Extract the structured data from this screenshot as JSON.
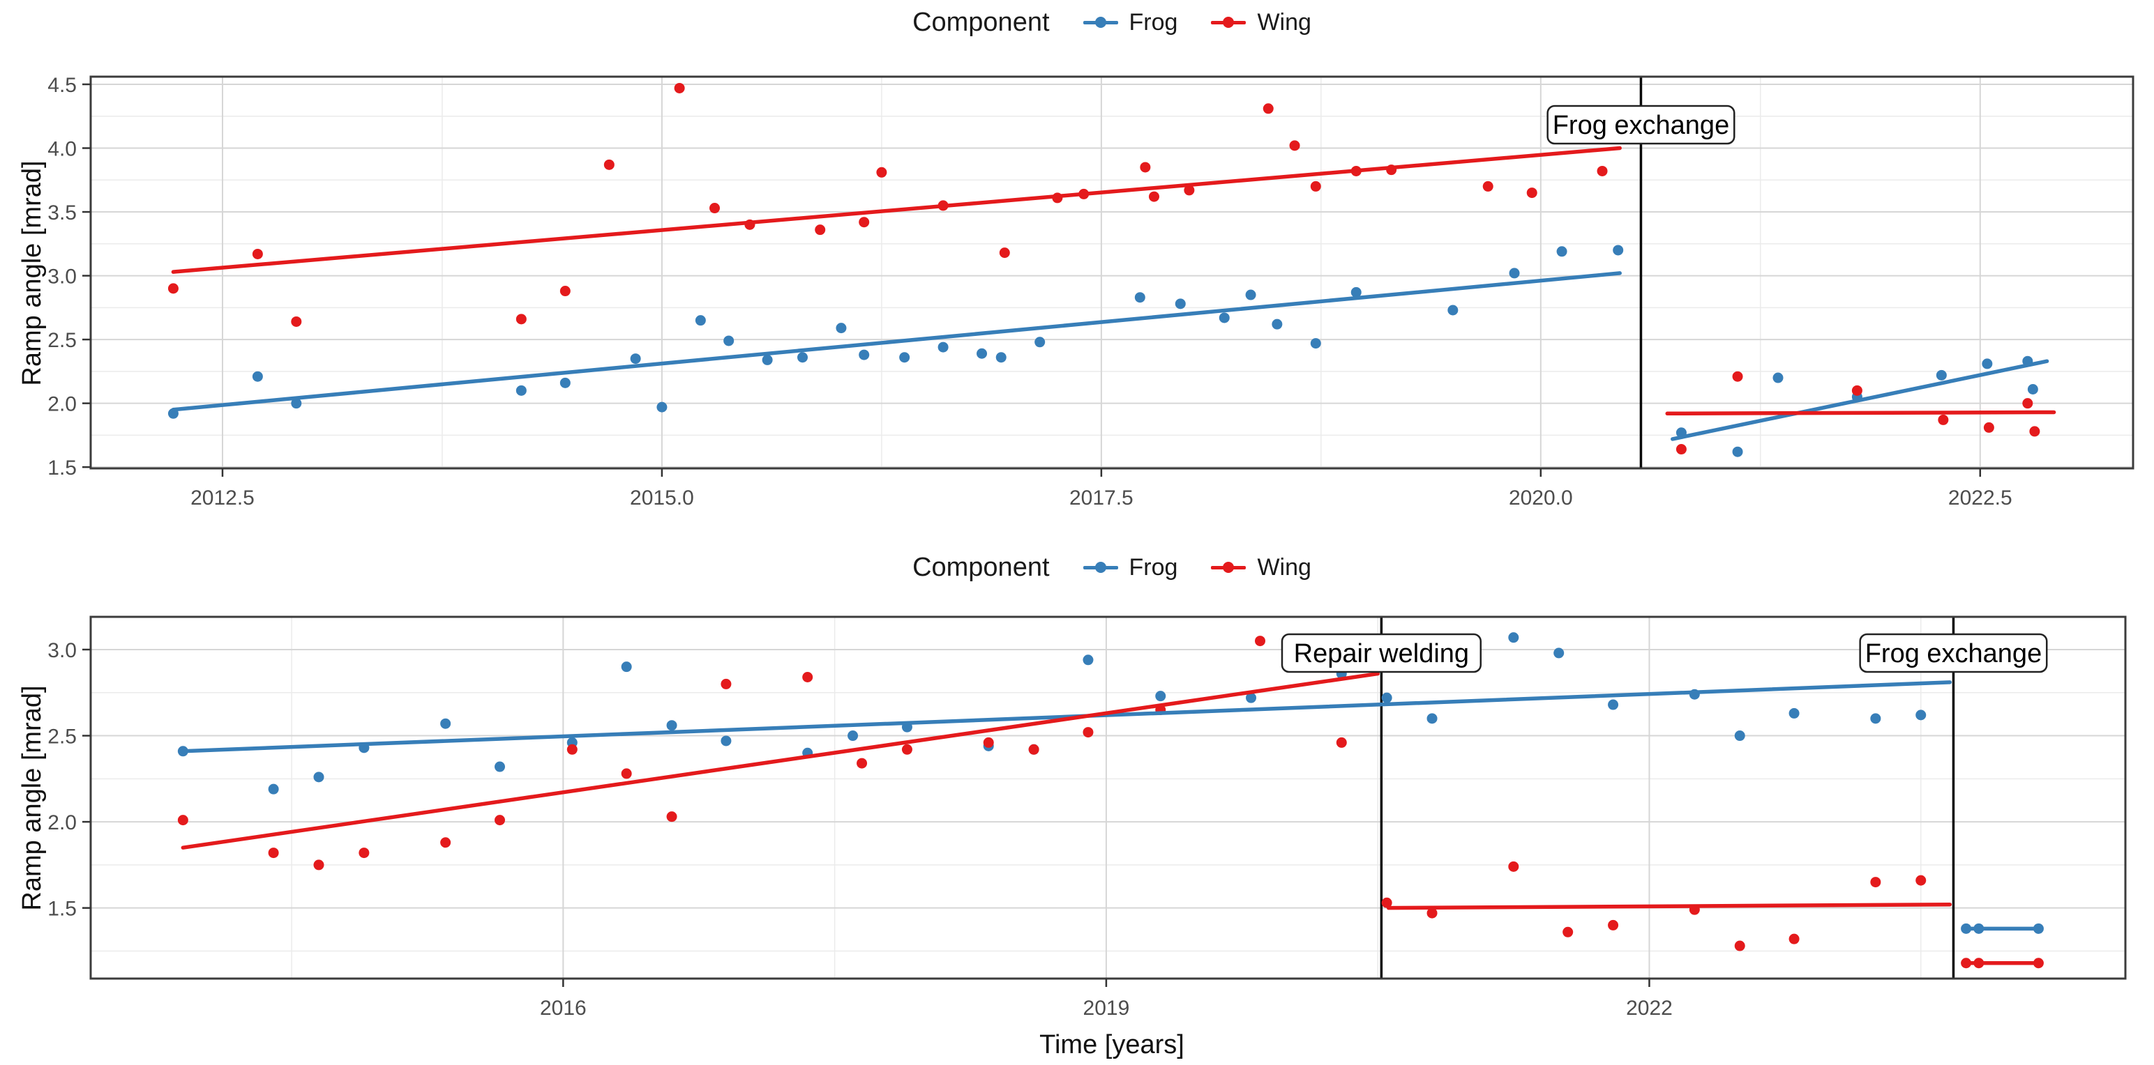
{
  "page": {
    "background": "#ffffff"
  },
  "colors": {
    "frog": "#377EB8",
    "wing": "#E41A1C",
    "grid_major": "#d6d6d6",
    "grid_minor": "#ebebeb",
    "panel_border": "#3c3c3c",
    "event_line": "#0a0a0a",
    "tick_mark": "#333333",
    "tick_text": "#4d4d4d",
    "annotation_text": "#000000"
  },
  "legend": {
    "title": "Component",
    "items": [
      {
        "label": "Frog",
        "color_key": "frog"
      },
      {
        "label": "Wing",
        "color_key": "wing"
      }
    ]
  },
  "chart_data": [
    {
      "type": "scatter",
      "legend_title": "Component",
      "ylabel": "Ramp angle [mrad]",
      "xlabel": "",
      "xlim": [
        2011.75,
        2023.37
      ],
      "ylim": [
        1.49,
        4.56
      ],
      "x_ticks": {
        "values": [
          2012.5,
          2015.0,
          2017.5,
          2020.0,
          2022.5
        ],
        "labels": [
          "2012.5",
          "2015.0",
          "2017.5",
          "2020.0",
          "2022.5"
        ]
      },
      "y_ticks": {
        "values": [
          1.5,
          2.0,
          2.5,
          3.0,
          3.5,
          4.0,
          4.5
        ],
        "labels": [
          "1.5",
          "2.0",
          "2.5",
          "3.0",
          "3.5",
          "4.0",
          "4.5"
        ]
      },
      "x_minor": [
        2013.75,
        2016.25,
        2018.75,
        2021.25
      ],
      "y_minor": [
        1.75,
        2.25,
        2.75,
        3.25,
        3.75,
        4.25
      ],
      "events": [
        {
          "x": 2020.57,
          "label": "Frog exchange"
        }
      ],
      "series": [
        {
          "name": "Frog",
          "color_key": "frog",
          "points": [
            [
              2012.22,
              1.92
            ],
            [
              2012.7,
              2.21
            ],
            [
              2012.92,
              2.0
            ],
            [
              2014.2,
              2.1
            ],
            [
              2014.45,
              2.16
            ],
            [
              2014.85,
              2.35
            ],
            [
              2015.0,
              1.97
            ],
            [
              2015.22,
              2.65
            ],
            [
              2015.38,
              2.49
            ],
            [
              2015.6,
              2.34
            ],
            [
              2015.8,
              2.36
            ],
            [
              2016.02,
              2.59
            ],
            [
              2016.15,
              2.38
            ],
            [
              2016.38,
              2.36
            ],
            [
              2016.6,
              2.44
            ],
            [
              2016.82,
              2.39
            ],
            [
              2016.93,
              2.36
            ],
            [
              2017.15,
              2.48
            ],
            [
              2017.72,
              2.83
            ],
            [
              2017.95,
              2.78
            ],
            [
              2018.2,
              2.67
            ],
            [
              2018.35,
              2.85
            ],
            [
              2018.5,
              2.62
            ],
            [
              2018.72,
              2.47
            ],
            [
              2018.95,
              2.87
            ],
            [
              2019.5,
              2.73
            ],
            [
              2019.85,
              3.02
            ],
            [
              2020.12,
              3.19
            ],
            [
              2020.44,
              3.2
            ],
            [
              2020.8,
              1.77
            ],
            [
              2021.12,
              1.62
            ],
            [
              2021.35,
              2.2
            ],
            [
              2021.8,
              2.05
            ],
            [
              2022.28,
              2.22
            ],
            [
              2022.54,
              2.31
            ],
            [
              2022.77,
              2.33
            ],
            [
              2022.8,
              2.11
            ]
          ],
          "trends": [
            [
              2012.22,
              1.95,
              2020.45,
              3.02
            ],
            [
              2020.75,
              1.72,
              2022.88,
              2.33
            ]
          ]
        },
        {
          "name": "Wing",
          "color_key": "wing",
          "points": [
            [
              2012.22,
              2.9
            ],
            [
              2012.7,
              3.17
            ],
            [
              2012.92,
              2.64
            ],
            [
              2014.2,
              2.66
            ],
            [
              2014.45,
              2.88
            ],
            [
              2014.7,
              3.87
            ],
            [
              2015.1,
              4.47
            ],
            [
              2015.3,
              3.53
            ],
            [
              2015.5,
              3.4
            ],
            [
              2015.9,
              3.36
            ],
            [
              2016.15,
              3.42
            ],
            [
              2016.25,
              3.81
            ],
            [
              2016.6,
              3.55
            ],
            [
              2016.95,
              3.18
            ],
            [
              2017.25,
              3.61
            ],
            [
              2017.4,
              3.64
            ],
            [
              2017.75,
              3.85
            ],
            [
              2017.8,
              3.62
            ],
            [
              2018.0,
              3.67
            ],
            [
              2018.45,
              4.31
            ],
            [
              2018.6,
              4.02
            ],
            [
              2018.72,
              3.7
            ],
            [
              2018.95,
              3.82
            ],
            [
              2019.15,
              3.83
            ],
            [
              2019.7,
              3.7
            ],
            [
              2019.95,
              3.65
            ],
            [
              2020.35,
              3.82
            ],
            [
              2020.8,
              1.64
            ],
            [
              2021.12,
              2.21
            ],
            [
              2021.8,
              2.1
            ],
            [
              2022.29,
              1.87
            ],
            [
              2022.55,
              1.81
            ],
            [
              2022.77,
              2.0
            ],
            [
              2022.81,
              1.78
            ]
          ],
          "trends": [
            [
              2012.22,
              3.03,
              2020.45,
              4.0
            ],
            [
              2020.72,
              1.92,
              2022.92,
              1.93
            ]
          ]
        }
      ]
    },
    {
      "type": "scatter",
      "legend_title": "Component",
      "ylabel": "Ramp angle [mrad]",
      "xlabel": "Time [years]",
      "xlim": [
        2013.39,
        2024.63
      ],
      "ylim": [
        1.09,
        3.19
      ],
      "x_ticks": {
        "values": [
          2016,
          2019,
          2022
        ],
        "labels": [
          "2016",
          "2019",
          "2022"
        ]
      },
      "y_ticks": {
        "values": [
          1.5,
          2.0,
          2.5,
          3.0
        ],
        "labels": [
          "1.5",
          "2.0",
          "2.5",
          "3.0"
        ]
      },
      "x_minor": [
        2014.5,
        2017.5,
        2020.5,
        2023.5
      ],
      "y_minor": [
        1.25,
        1.75,
        2.25,
        2.75
      ],
      "events": [
        {
          "x": 2020.52,
          "label": "Repair welding"
        },
        {
          "x": 2023.68,
          "label": "Frog exchange"
        }
      ],
      "series": [
        {
          "name": "Frog",
          "color_key": "frog",
          "points": [
            [
              2013.9,
              2.41
            ],
            [
              2014.4,
              2.19
            ],
            [
              2014.65,
              2.26
            ],
            [
              2014.9,
              2.43
            ],
            [
              2015.35,
              2.57
            ],
            [
              2015.65,
              2.32
            ],
            [
              2016.05,
              2.46
            ],
            [
              2016.35,
              2.9
            ],
            [
              2016.6,
              2.56
            ],
            [
              2016.9,
              2.47
            ],
            [
              2017.35,
              2.4
            ],
            [
              2017.6,
              2.5
            ],
            [
              2017.9,
              2.55
            ],
            [
              2018.35,
              2.44
            ],
            [
              2018.6,
              2.42
            ],
            [
              2018.9,
              2.94
            ],
            [
              2019.3,
              2.73
            ],
            [
              2019.8,
              2.72
            ],
            [
              2020.3,
              2.86
            ],
            [
              2020.55,
              2.72
            ],
            [
              2020.8,
              2.6
            ],
            [
              2021.25,
              3.07
            ],
            [
              2021.5,
              2.98
            ],
            [
              2021.8,
              2.68
            ],
            [
              2022.25,
              2.74
            ],
            [
              2022.5,
              2.5
            ],
            [
              2022.8,
              2.63
            ],
            [
              2023.25,
              2.6
            ],
            [
              2023.5,
              2.62
            ],
            [
              2023.75,
              1.38
            ],
            [
              2023.82,
              1.38
            ],
            [
              2024.15,
              1.38
            ]
          ],
          "trends": [
            [
              2013.9,
              2.41,
              2023.66,
              2.81
            ],
            [
              2023.75,
              1.38,
              2024.15,
              1.38
            ]
          ]
        },
        {
          "name": "Wing",
          "color_key": "wing",
          "points": [
            [
              2013.9,
              2.01
            ],
            [
              2014.4,
              1.82
            ],
            [
              2014.65,
              1.75
            ],
            [
              2014.9,
              1.82
            ],
            [
              2015.35,
              1.88
            ],
            [
              2015.65,
              2.01
            ],
            [
              2016.05,
              2.42
            ],
            [
              2016.35,
              2.28
            ],
            [
              2016.6,
              2.03
            ],
            [
              2016.9,
              2.8
            ],
            [
              2017.35,
              2.84
            ],
            [
              2017.65,
              2.34
            ],
            [
              2017.9,
              2.42
            ],
            [
              2018.35,
              2.46
            ],
            [
              2018.6,
              2.42
            ],
            [
              2018.9,
              2.52
            ],
            [
              2019.3,
              2.65
            ],
            [
              2019.85,
              3.05
            ],
            [
              2020.3,
              2.46
            ],
            [
              2020.55,
              1.53
            ],
            [
              2020.8,
              1.47
            ],
            [
              2021.25,
              1.74
            ],
            [
              2021.55,
              1.36
            ],
            [
              2021.8,
              1.4
            ],
            [
              2022.25,
              1.49
            ],
            [
              2022.5,
              1.28
            ],
            [
              2022.8,
              1.32
            ],
            [
              2023.25,
              1.65
            ],
            [
              2023.5,
              1.66
            ],
            [
              2023.75,
              1.18
            ],
            [
              2023.82,
              1.18
            ],
            [
              2024.15,
              1.18
            ]
          ],
          "trends": [
            [
              2013.9,
              1.85,
              2020.5,
              2.86
            ],
            [
              2020.56,
              1.5,
              2023.66,
              1.52
            ],
            [
              2023.75,
              1.18,
              2024.15,
              1.18
            ]
          ]
        }
      ]
    }
  ]
}
